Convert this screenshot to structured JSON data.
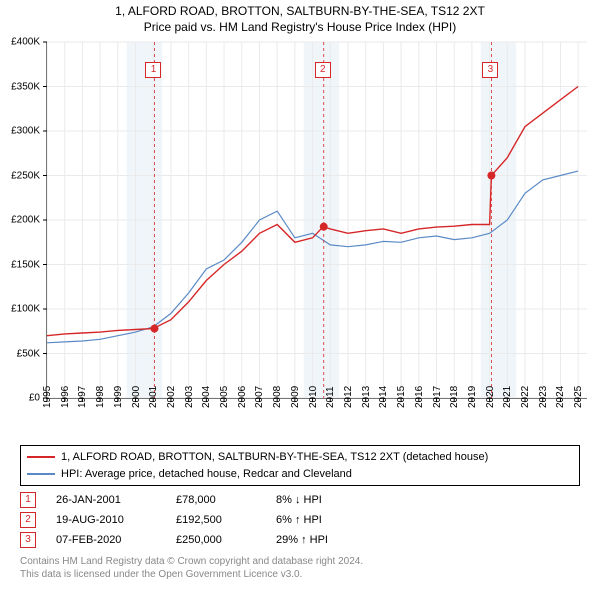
{
  "title_line1": "1, ALFORD ROAD, BROTTON, SALTBURN-BY-THE-SEA, TS12 2XT",
  "title_line2": "Price paid vs. HM Land Registry's House Price Index (HPI)",
  "chart": {
    "type": "line",
    "background_color": "#ffffff",
    "xlim": [
      1995,
      2025.5
    ],
    "ylim": [
      0,
      400000
    ],
    "ytick_step": 50000,
    "yticks": [
      0,
      50000,
      100000,
      150000,
      200000,
      250000,
      300000,
      350000,
      400000
    ],
    "ytick_labels": [
      "£0",
      "£50K",
      "£100K",
      "£150K",
      "£200K",
      "£250K",
      "£300K",
      "£350K",
      "£400K"
    ],
    "xticks": [
      1995,
      1996,
      1997,
      1998,
      1999,
      2000,
      2001,
      2002,
      2003,
      2004,
      2005,
      2006,
      2007,
      2008,
      2009,
      2010,
      2011,
      2012,
      2013,
      2014,
      2015,
      2016,
      2017,
      2018,
      2019,
      2020,
      2021,
      2022,
      2023,
      2024,
      2025
    ],
    "grid_color": "#eaeaea",
    "band_color": "#f0f5fa",
    "bands": [
      [
        1999.5,
        2001.5
      ],
      [
        2009.5,
        2011.5
      ],
      [
        2019.5,
        2021.5
      ]
    ],
    "series": [
      {
        "name": "price_paid",
        "color": "#d62728",
        "width": 1.4,
        "x": [
          1995,
          1996,
          1997,
          1998,
          1999,
          2000,
          2001,
          2002,
          2003,
          2004,
          2005,
          2006,
          2007,
          2008,
          2009,
          2010,
          2010.6,
          2011,
          2012,
          2013,
          2014,
          2015,
          2016,
          2017,
          2018,
          2019,
          2020,
          2020.1,
          2021,
          2022,
          2023,
          2024,
          2025
        ],
        "y": [
          70000,
          72000,
          73000,
          74000,
          76000,
          77000,
          78000,
          88000,
          108000,
          132000,
          150000,
          165000,
          185000,
          195000,
          175000,
          180000,
          192500,
          190000,
          185000,
          188000,
          190000,
          185000,
          190000,
          192000,
          193000,
          195000,
          195000,
          250000,
          270000,
          305000,
          320000,
          335000,
          350000
        ]
      },
      {
        "name": "hpi",
        "color": "#5a8ac6",
        "width": 1.2,
        "x": [
          1995,
          1996,
          1997,
          1998,
          1999,
          2000,
          2001,
          2002,
          2003,
          2004,
          2005,
          2006,
          2007,
          2008,
          2009,
          2010,
          2011,
          2012,
          2013,
          2014,
          2015,
          2016,
          2017,
          2018,
          2019,
          2020,
          2021,
          2022,
          2023,
          2024,
          2025
        ],
        "y": [
          62000,
          63000,
          64000,
          66000,
          70000,
          74000,
          80000,
          95000,
          118000,
          145000,
          155000,
          175000,
          200000,
          210000,
          180000,
          185000,
          172000,
          170000,
          172000,
          176000,
          175000,
          180000,
          182000,
          178000,
          180000,
          185000,
          200000,
          230000,
          245000,
          250000,
          255000
        ]
      }
    ],
    "sale_markers": [
      {
        "n": "1",
        "x": 2001.07,
        "y": 78000
      },
      {
        "n": "2",
        "x": 2010.63,
        "y": 192500
      },
      {
        "n": "3",
        "x": 2020.1,
        "y": 250000
      }
    ],
    "marker_color": "#d62728",
    "marker_radius": 4,
    "badge_y_offset": 20
  },
  "legend": [
    {
      "color": "#d62728",
      "label": "1, ALFORD ROAD, BROTTON, SALTBURN-BY-THE-SEA, TS12 2XT (detached house)"
    },
    {
      "color": "#5a8ac6",
      "label": "HPI: Average price, detached house, Redcar and Cleveland"
    }
  ],
  "events": [
    {
      "n": "1",
      "date": "26-JAN-2001",
      "price": "£78,000",
      "pct": "8% ↓ HPI"
    },
    {
      "n": "2",
      "date": "19-AUG-2010",
      "price": "£192,500",
      "pct": "6% ↑ HPI"
    },
    {
      "n": "3",
      "date": "07-FEB-2020",
      "price": "£250,000",
      "pct": "29% ↑ HPI"
    }
  ],
  "footer_line1": "Contains HM Land Registry data © Crown copyright and database right 2024.",
  "footer_line2": "This data is licensed under the Open Government Licence v3.0."
}
